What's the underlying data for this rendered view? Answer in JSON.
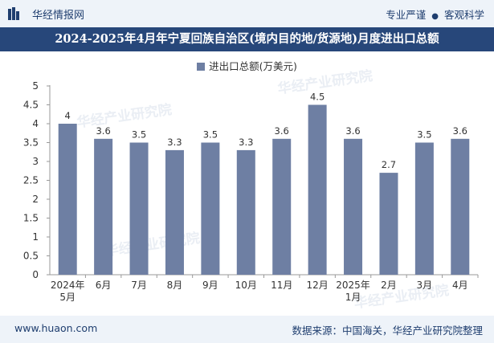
{
  "header": {
    "brand_name": "华经情报网",
    "slogan_left": "专业严谨",
    "slogan_right": "客观科学"
  },
  "title": "2024-2025年4月年宁夏回族自治区(境内目的地/货源地)月度进出口总额",
  "watermark": "华经产业研究院",
  "footer": {
    "url": "www.huaon.com",
    "source": "数据来源：中国海关，华经产业研究院整理"
  },
  "colors": {
    "bar": "#6e7fa3",
    "title_bg": "#27477a",
    "band_bg": "#eef3f9"
  },
  "chart_data": {
    "type": "bar",
    "title": "2024-2025年4月年宁夏回族自治区(境内目的地/货源地)月度进出口总额",
    "legend": "进出口总额(万美元)",
    "categories": [
      "2024年5月",
      "6月",
      "7月",
      "8月",
      "9月",
      "10月",
      "11月",
      "12月",
      "2025年1月",
      "2月",
      "3月",
      "4月"
    ],
    "category_lines": [
      [
        "2024年",
        "5月"
      ],
      [
        "6月"
      ],
      [
        "7月"
      ],
      [
        "8月"
      ],
      [
        "9月"
      ],
      [
        "10月"
      ],
      [
        "11月"
      ],
      [
        "12月"
      ],
      [
        "2025年",
        "1月"
      ],
      [
        "2月"
      ],
      [
        "3月"
      ],
      [
        "4月"
      ]
    ],
    "series": [
      {
        "name": "进出口总额(万美元)",
        "values": [
          4,
          3.6,
          3.5,
          3.3,
          3.5,
          3.3,
          3.6,
          4.5,
          3.6,
          2.7,
          3.5,
          3.6
        ]
      }
    ],
    "value_labels": [
      "4",
      "3.6",
      "3.5",
      "3.3",
      "3.5",
      "3.3",
      "3.6",
      "4.5",
      "3.6",
      "2.7",
      "3.5",
      "3.6"
    ],
    "ylim": [
      0,
      5
    ],
    "yticks": [
      "0",
      "0.5",
      "1",
      "1.5",
      "2",
      "2.5",
      "3",
      "3.5",
      "4",
      "4.5",
      "5"
    ],
    "ytick_values": [
      0,
      0.5,
      1,
      1.5,
      2,
      2.5,
      3,
      3.5,
      4,
      4.5,
      5
    ],
    "xlabel": "",
    "ylabel": "",
    "grid": false
  }
}
